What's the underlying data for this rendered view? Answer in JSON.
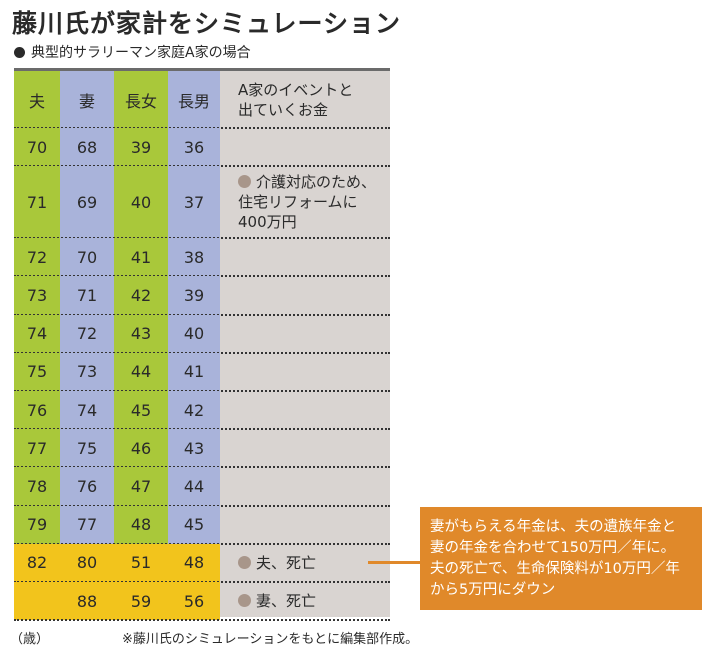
{
  "header": {
    "title": "藤川氏が家計をシミュレーション",
    "subtitle": "典型的サラリーマン家庭A家の場合"
  },
  "table": {
    "columns": {
      "ages": [
        "夫",
        "妻",
        "長女",
        "長男"
      ],
      "event": [
        "A家のイベントと",
        "出ていくお金"
      ]
    },
    "rows": [
      {
        "ages": [
          70,
          68,
          39,
          36
        ]
      },
      {
        "ages": [
          71,
          69,
          40,
          37
        ],
        "event": [
          "介護対応のため、",
          "住宅リフォームに",
          "400万円"
        ]
      },
      {
        "ages": [
          72,
          70,
          41,
          38
        ]
      },
      {
        "ages": [
          73,
          71,
          42,
          39
        ]
      },
      {
        "ages": [
          74,
          72,
          43,
          40
        ]
      },
      {
        "ages": [
          75,
          73,
          44,
          41
        ]
      },
      {
        "ages": [
          76,
          74,
          45,
          42
        ]
      },
      {
        "ages": [
          77,
          75,
          46,
          43
        ]
      },
      {
        "ages": [
          78,
          76,
          47,
          44
        ]
      },
      {
        "ages": [
          79,
          77,
          48,
          45
        ]
      },
      {
        "ages": [
          82,
          80,
          51,
          48
        ],
        "event": [
          "夫、死亡"
        ],
        "color": "#f2c41c"
      },
      {
        "ages": [
          null,
          88,
          59,
          56
        ],
        "event": [
          "妻、死亡"
        ],
        "color": "#f2c41c"
      }
    ]
  },
  "callout": {
    "lines": [
      "妻がもらえる年金は、夫の遺族年金と",
      "妻の年金を合わせて150万円／年に。",
      "夫の死亡で、生命保険料が10万円／年",
      "から5万円にダウン"
    ]
  },
  "footer": {
    "unit": "（歳）",
    "source": "※藤川氏のシミュレーションをもとに編集部作成。"
  }
}
